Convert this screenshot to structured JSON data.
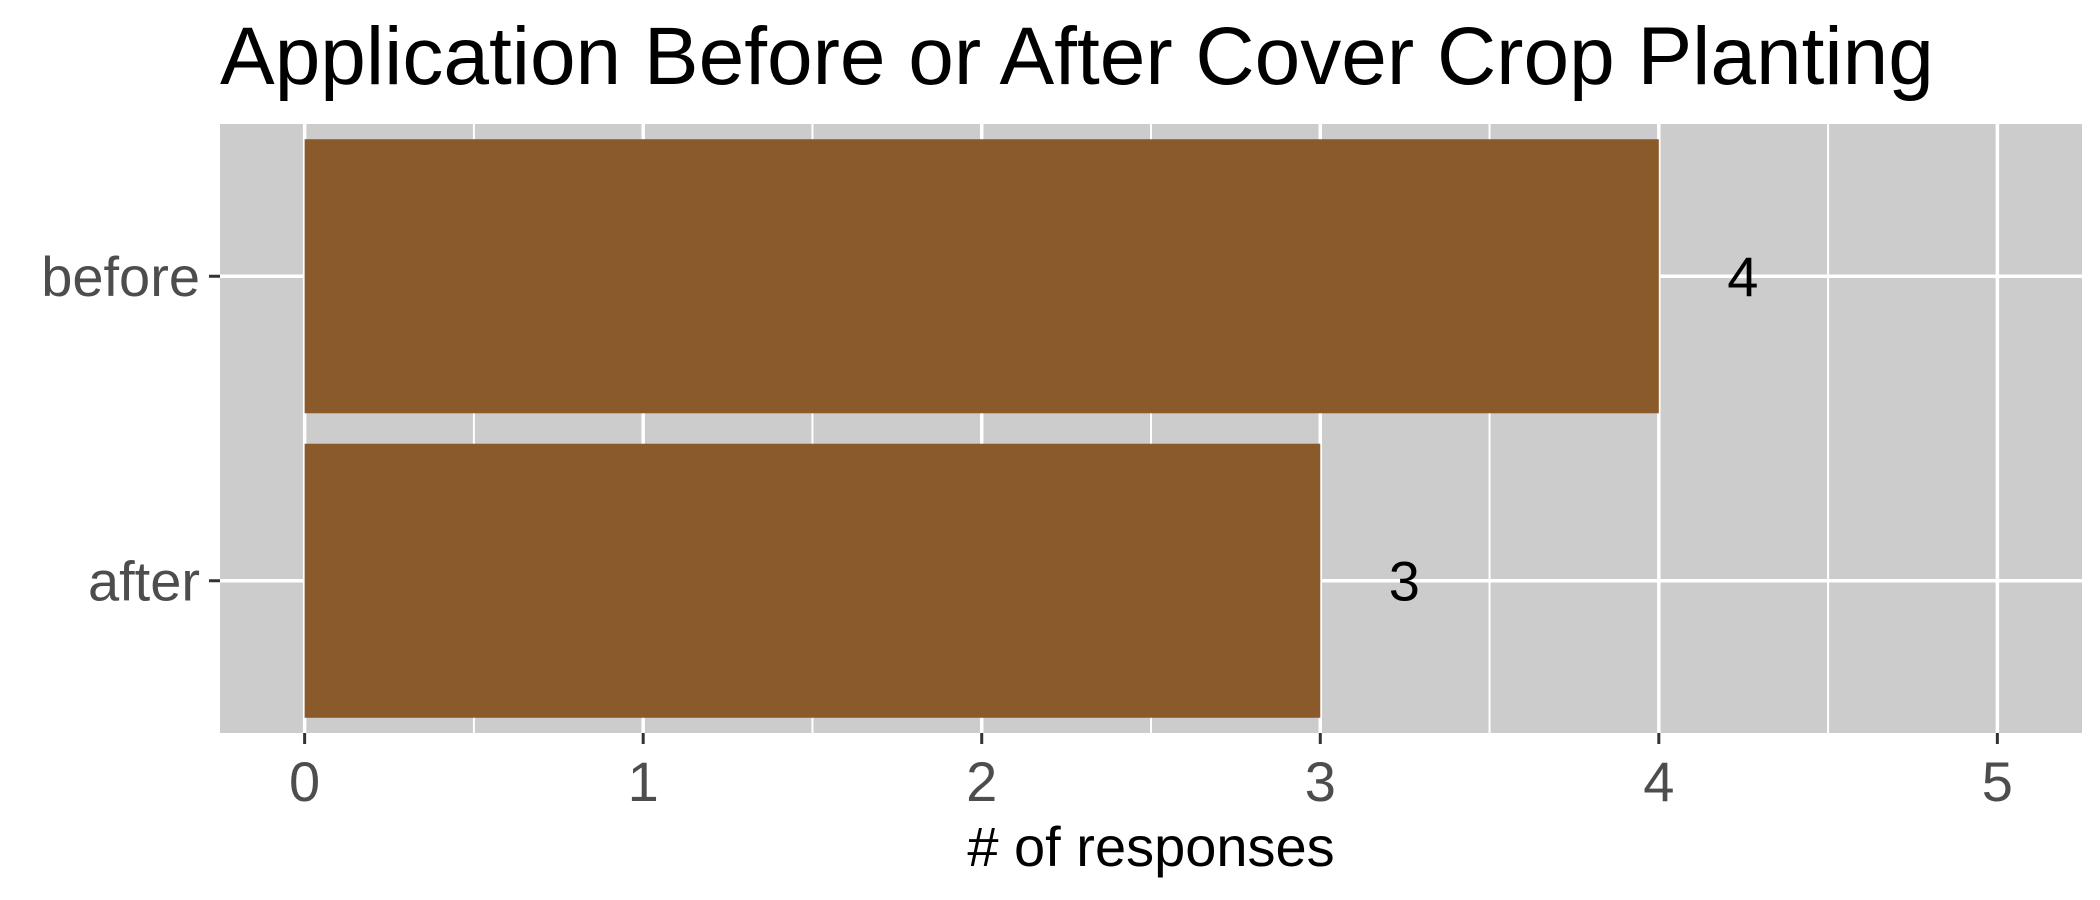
{
  "chart_data": {
    "type": "bar",
    "orientation": "horizontal",
    "title": "Application Before or After Cover Crop Planting",
    "xlabel": "# of responses",
    "ylabel": "",
    "categories": [
      "before",
      "after"
    ],
    "values": [
      4,
      3
    ],
    "data_labels": [
      "4",
      "3"
    ],
    "xlim": [
      -0.25,
      5.25
    ],
    "x_ticks": [
      0,
      1,
      2,
      3,
      4,
      5
    ],
    "x_tick_labels": [
      "0",
      "1",
      "2",
      "3",
      "4",
      "5"
    ],
    "grid": true,
    "legend": "none",
    "colors": {
      "bar": "#8B5A2B",
      "panel": "#CCCCCC",
      "grid": "#FFFFFF",
      "tick_text": "#4D4D4D",
      "text": "#000000"
    }
  }
}
